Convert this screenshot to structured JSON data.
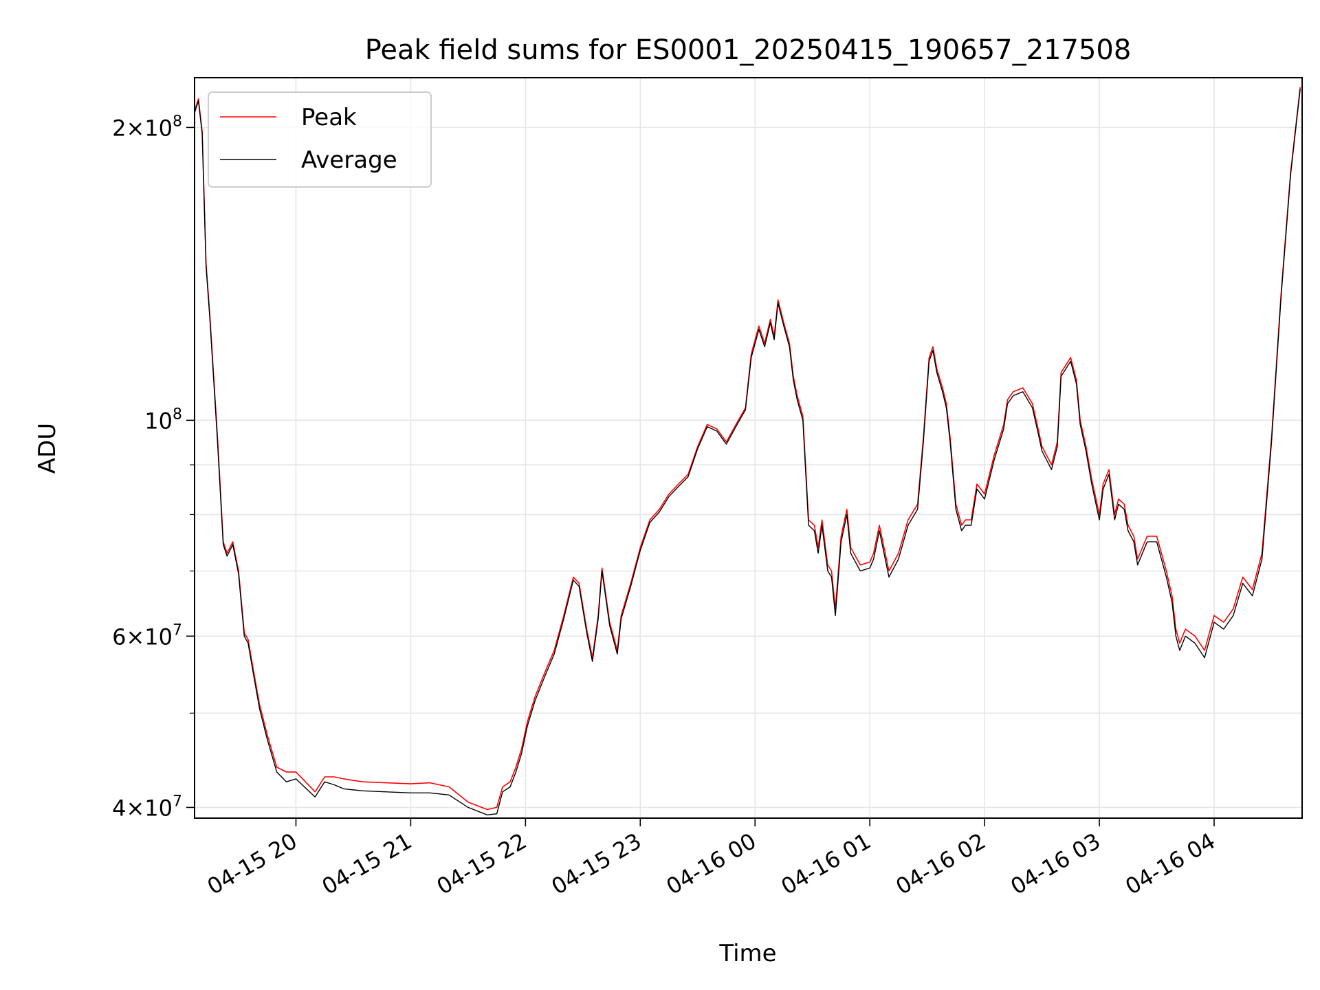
{
  "chart_data": {
    "type": "line",
    "title": "Peak field sums for ES0001_20250415_190657_217508",
    "xlabel": "Time",
    "ylabel": "ADU",
    "yscale": "log",
    "ylim": [
      39000000,
      225000000
    ],
    "xlim": [
      "2025-04-15 19:07",
      "2025-04-16 04:46"
    ],
    "grid": true,
    "legend_position": "top-left",
    "x_ticks": [
      {
        "value": "2025-04-15 20:00",
        "label": "04-15 20"
      },
      {
        "value": "2025-04-15 21:00",
        "label": "04-15 21"
      },
      {
        "value": "2025-04-15 22:00",
        "label": "04-15 22"
      },
      {
        "value": "2025-04-15 23:00",
        "label": "04-15 23"
      },
      {
        "value": "2025-04-16 00:00",
        "label": "04-16 00"
      },
      {
        "value": "2025-04-16 01:00",
        "label": "04-16 01"
      },
      {
        "value": "2025-04-16 02:00",
        "label": "04-16 02"
      },
      {
        "value": "2025-04-16 03:00",
        "label": "04-16 03"
      },
      {
        "value": "2025-04-16 04:00",
        "label": "04-16 04"
      }
    ],
    "y_ticks": [
      {
        "value": 40000000,
        "base": "4×10",
        "exp": "7"
      },
      {
        "value": 60000000,
        "base": "6×10",
        "exp": "7"
      },
      {
        "value": 100000000,
        "base": "10",
        "exp": "8"
      },
      {
        "value": 200000000,
        "base": "2×10",
        "exp": "8"
      }
    ],
    "y_minor_ticks": [
      50000000,
      70000000,
      80000000,
      90000000
    ],
    "series": [
      {
        "name": "Peak",
        "color": "#ff0000",
        "x": [
          "2025-04-15 19:07",
          "2025-04-15 19:09",
          "2025-04-15 19:11",
          "2025-04-15 19:13",
          "2025-04-15 19:15",
          "2025-04-15 19:19",
          "2025-04-15 19:22",
          "2025-04-15 19:24",
          "2025-04-15 19:27",
          "2025-04-15 19:30",
          "2025-04-15 19:33",
          "2025-04-15 19:35",
          "2025-04-15 19:38",
          "2025-04-15 19:41",
          "2025-04-15 19:45",
          "2025-04-15 19:50",
          "2025-04-15 19:55",
          "2025-04-15 20:00",
          "2025-04-15 20:10",
          "2025-04-15 20:15",
          "2025-04-15 20:20",
          "2025-04-15 20:25",
          "2025-04-15 20:35",
          "2025-04-15 21:00",
          "2025-04-15 21:10",
          "2025-04-15 21:20",
          "2025-04-15 21:30",
          "2025-04-15 21:40",
          "2025-04-15 21:45",
          "2025-04-15 21:48",
          "2025-04-15 21:52",
          "2025-04-15 21:55",
          "2025-04-15 21:58",
          "2025-04-15 22:01",
          "2025-04-15 22:05",
          "2025-04-15 22:10",
          "2025-04-15 22:15",
          "2025-04-15 22:20",
          "2025-04-15 22:25",
          "2025-04-15 22:28",
          "2025-04-15 22:32",
          "2025-04-15 22:35",
          "2025-04-15 22:38",
          "2025-04-15 22:40",
          "2025-04-15 22:44",
          "2025-04-15 22:48",
          "2025-04-15 22:50",
          "2025-04-15 22:55",
          "2025-04-15 23:00",
          "2025-04-15 23:05",
          "2025-04-15 23:10",
          "2025-04-15 23:15",
          "2025-04-15 23:20",
          "2025-04-15 23:25",
          "2025-04-15 23:30",
          "2025-04-15 23:35",
          "2025-04-15 23:40",
          "2025-04-15 23:45",
          "2025-04-15 23:50",
          "2025-04-15 23:55",
          "2025-04-15 23:58",
          "2025-04-16 00:02",
          "2025-04-16 00:05",
          "2025-04-16 00:08",
          "2025-04-16 00:10",
          "2025-04-16 00:12",
          "2025-04-16 00:15",
          "2025-04-16 00:18",
          "2025-04-16 00:20",
          "2025-04-16 00:22",
          "2025-04-16 00:25",
          "2025-04-16 00:28",
          "2025-04-16 00:31",
          "2025-04-16 00:33",
          "2025-04-16 00:35",
          "2025-04-16 00:38",
          "2025-04-16 00:40",
          "2025-04-16 00:42",
          "2025-04-16 00:45",
          "2025-04-16 00:48",
          "2025-04-16 00:50",
          "2025-04-16 00:55",
          "2025-04-16 01:00",
          "2025-04-16 01:02",
          "2025-04-16 01:05",
          "2025-04-16 01:10",
          "2025-04-16 01:15",
          "2025-04-16 01:20",
          "2025-04-16 01:25",
          "2025-04-16 01:28",
          "2025-04-16 01:31",
          "2025-04-16 01:33",
          "2025-04-16 01:35",
          "2025-04-16 01:38",
          "2025-04-16 01:40",
          "2025-04-16 01:42",
          "2025-04-16 01:45",
          "2025-04-16 01:48",
          "2025-04-16 01:50",
          "2025-04-16 01:53",
          "2025-04-16 01:56",
          "2025-04-16 02:00",
          "2025-04-16 02:05",
          "2025-04-16 02:10",
          "2025-04-16 02:12",
          "2025-04-16 02:15",
          "2025-04-16 02:20",
          "2025-04-16 02:25",
          "2025-04-16 02:28",
          "2025-04-16 02:30",
          "2025-04-16 02:35",
          "2025-04-16 02:38",
          "2025-04-16 02:40",
          "2025-04-16 02:45",
          "2025-04-16 02:48",
          "2025-04-16 02:50",
          "2025-04-16 02:53",
          "2025-04-16 02:56",
          "2025-04-16 03:00",
          "2025-04-16 03:02",
          "2025-04-16 03:05",
          "2025-04-16 03:08",
          "2025-04-16 03:10",
          "2025-04-16 03:13",
          "2025-04-16 03:15",
          "2025-04-16 03:18",
          "2025-04-16 03:20",
          "2025-04-16 03:25",
          "2025-04-16 03:30",
          "2025-04-16 03:35",
          "2025-04-16 03:38",
          "2025-04-16 03:40",
          "2025-04-16 03:42",
          "2025-04-16 03:45",
          "2025-04-16 03:50",
          "2025-04-16 03:55",
          "2025-04-16 04:00",
          "2025-04-16 04:05",
          "2025-04-16 04:10",
          "2025-04-16 04:15",
          "2025-04-16 04:20",
          "2025-04-16 04:25",
          "2025-04-16 04:30",
          "2025-04-16 04:35",
          "2025-04-16 04:40",
          "2025-04-16 04:45"
        ],
        "y": [
          208000000,
          214000000,
          198000000,
          145000000,
          128000000,
          96000000,
          75000000,
          73000000,
          75000000,
          70000000,
          60500000,
          59500000,
          55000000,
          51000000,
          47500000,
          44000000,
          43500000,
          43500000,
          41500000,
          43000000,
          43000000,
          42800000,
          42500000,
          42300000,
          42400000,
          42000000,
          40500000,
          39800000,
          40000000,
          42000000,
          42500000,
          44000000,
          46000000,
          49000000,
          52000000,
          55000000,
          58000000,
          63000000,
          69000000,
          68000000,
          61000000,
          57000000,
          63000000,
          70500000,
          62000000,
          58000000,
          63000000,
          68000000,
          74000000,
          79000000,
          81000000,
          84000000,
          86000000,
          88000000,
          94000000,
          99000000,
          98000000,
          95000000,
          99000000,
          103000000,
          117000000,
          125000000,
          120000000,
          127000000,
          122000000,
          133000000,
          126000000,
          120000000,
          111000000,
          106000000,
          101000000,
          79000000,
          78000000,
          74000000,
          79000000,
          71000000,
          70000000,
          64000000,
          76000000,
          81000000,
          74000000,
          71000000,
          71500000,
          73000000,
          78000000,
          70000000,
          73000000,
          79000000,
          82000000,
          96000000,
          116000000,
          119000000,
          113000000,
          108000000,
          104000000,
          96000000,
          82000000,
          78000000,
          79000000,
          79000000,
          86000000,
          84000000,
          92000000,
          99000000,
          105000000,
          107000000,
          108000000,
          104000000,
          98000000,
          94000000,
          90000000,
          95000000,
          112000000,
          116000000,
          110000000,
          100000000,
          94000000,
          87000000,
          80000000,
          86000000,
          89000000,
          80000000,
          83000000,
          82000000,
          78000000,
          76000000,
          72000000,
          76000000,
          76000000,
          70000000,
          66000000,
          61000000,
          59000000,
          61000000,
          60000000,
          58000000,
          63000000,
          62000000,
          64000000,
          69000000,
          67000000,
          73000000,
          96000000,
          135000000,
          180000000,
          220000000
        ]
      },
      {
        "name": "Average",
        "color": "#000000",
        "x": [
          "2025-04-15 19:07",
          "2025-04-15 19:09",
          "2025-04-15 19:11",
          "2025-04-15 19:13",
          "2025-04-15 19:15",
          "2025-04-15 19:19",
          "2025-04-15 19:22",
          "2025-04-15 19:24",
          "2025-04-15 19:27",
          "2025-04-15 19:30",
          "2025-04-15 19:33",
          "2025-04-15 19:35",
          "2025-04-15 19:38",
          "2025-04-15 19:41",
          "2025-04-15 19:45",
          "2025-04-15 19:50",
          "2025-04-15 19:55",
          "2025-04-15 20:00",
          "2025-04-15 20:10",
          "2025-04-15 20:15",
          "2025-04-15 20:20",
          "2025-04-15 20:25",
          "2025-04-15 20:35",
          "2025-04-15 21:00",
          "2025-04-15 21:10",
          "2025-04-15 21:20",
          "2025-04-15 21:30",
          "2025-04-15 21:40",
          "2025-04-15 21:45",
          "2025-04-15 21:48",
          "2025-04-15 21:52",
          "2025-04-15 21:55",
          "2025-04-15 21:58",
          "2025-04-15 22:01",
          "2025-04-15 22:05",
          "2025-04-15 22:10",
          "2025-04-15 22:15",
          "2025-04-15 22:20",
          "2025-04-15 22:25",
          "2025-04-15 22:28",
          "2025-04-15 22:32",
          "2025-04-15 22:35",
          "2025-04-15 22:38",
          "2025-04-15 22:40",
          "2025-04-15 22:44",
          "2025-04-15 22:48",
          "2025-04-15 22:50",
          "2025-04-15 22:55",
          "2025-04-15 23:00",
          "2025-04-15 23:05",
          "2025-04-15 23:10",
          "2025-04-15 23:15",
          "2025-04-15 23:20",
          "2025-04-15 23:25",
          "2025-04-15 23:30",
          "2025-04-15 23:35",
          "2025-04-15 23:40",
          "2025-04-15 23:45",
          "2025-04-15 23:50",
          "2025-04-15 23:55",
          "2025-04-15 23:58",
          "2025-04-16 00:02",
          "2025-04-16 00:05",
          "2025-04-16 00:08",
          "2025-04-16 00:10",
          "2025-04-16 00:12",
          "2025-04-16 00:15",
          "2025-04-16 00:18",
          "2025-04-16 00:20",
          "2025-04-16 00:22",
          "2025-04-16 00:25",
          "2025-04-16 00:28",
          "2025-04-16 00:31",
          "2025-04-16 00:33",
          "2025-04-16 00:35",
          "2025-04-16 00:38",
          "2025-04-16 00:40",
          "2025-04-16 00:42",
          "2025-04-16 00:45",
          "2025-04-16 00:48",
          "2025-04-16 00:50",
          "2025-04-16 00:55",
          "2025-04-16 01:00",
          "2025-04-16 01:02",
          "2025-04-16 01:05",
          "2025-04-16 01:10",
          "2025-04-16 01:15",
          "2025-04-16 01:20",
          "2025-04-16 01:25",
          "2025-04-16 01:28",
          "2025-04-16 01:31",
          "2025-04-16 01:33",
          "2025-04-16 01:35",
          "2025-04-16 01:38",
          "2025-04-16 01:40",
          "2025-04-16 01:42",
          "2025-04-16 01:45",
          "2025-04-16 01:48",
          "2025-04-16 01:50",
          "2025-04-16 01:53",
          "2025-04-16 01:56",
          "2025-04-16 02:00",
          "2025-04-16 02:05",
          "2025-04-16 02:10",
          "2025-04-16 02:12",
          "2025-04-16 02:15",
          "2025-04-16 02:20",
          "2025-04-16 02:25",
          "2025-04-16 02:28",
          "2025-04-16 02:30",
          "2025-04-16 02:35",
          "2025-04-16 02:38",
          "2025-04-16 02:40",
          "2025-04-16 02:45",
          "2025-04-16 02:48",
          "2025-04-16 02:50",
          "2025-04-16 02:53",
          "2025-04-16 02:56",
          "2025-04-16 03:00",
          "2025-04-16 03:02",
          "2025-04-16 03:05",
          "2025-04-16 03:08",
          "2025-04-16 03:10",
          "2025-04-16 03:13",
          "2025-04-16 03:15",
          "2025-04-16 03:18",
          "2025-04-16 03:20",
          "2025-04-16 03:25",
          "2025-04-16 03:30",
          "2025-04-16 03:35",
          "2025-04-16 03:38",
          "2025-04-16 03:40",
          "2025-04-16 03:42",
          "2025-04-16 03:45",
          "2025-04-16 03:50",
          "2025-04-16 03:55",
          "2025-04-16 04:00",
          "2025-04-16 04:05",
          "2025-04-16 04:10",
          "2025-04-16 04:15",
          "2025-04-16 04:20",
          "2025-04-16 04:25",
          "2025-04-16 04:30",
          "2025-04-16 04:35",
          "2025-04-16 04:40",
          "2025-04-16 04:45"
        ],
        "y": [
          207000000,
          213000000,
          197000000,
          144000000,
          127000000,
          95000000,
          74500000,
          72500000,
          74500000,
          69500000,
          60000000,
          59000000,
          54500000,
          50500000,
          47000000,
          43500000,
          42500000,
          42800000,
          41000000,
          42500000,
          42200000,
          41800000,
          41600000,
          41400000,
          41400000,
          41200000,
          40000000,
          39300000,
          39400000,
          41500000,
          42000000,
          43500000,
          45500000,
          48500000,
          51500000,
          54500000,
          57500000,
          62500000,
          68500000,
          67500000,
          60500000,
          56500000,
          62500000,
          70000000,
          61500000,
          57500000,
          62500000,
          67500000,
          73500000,
          78500000,
          80500000,
          83500000,
          85500000,
          87500000,
          93500000,
          98500000,
          97500000,
          94500000,
          98500000,
          102500000,
          116000000,
          124000000,
          119000000,
          126000000,
          121000000,
          132000000,
          125000000,
          119000000,
          110000000,
          105000000,
          100000000,
          78000000,
          77000000,
          73000000,
          78000000,
          70000000,
          69000000,
          63000000,
          75000000,
          80000000,
          73000000,
          70000000,
          70500000,
          72000000,
          77000000,
          69000000,
          72000000,
          78000000,
          81000000,
          95000000,
          115000000,
          118000000,
          112000000,
          107000000,
          103000000,
          95000000,
          81000000,
          77000000,
          78000000,
          78000000,
          85000000,
          83000000,
          91000000,
          98000000,
          104000000,
          106000000,
          107000000,
          103000000,
          97000000,
          93000000,
          89000000,
          94000000,
          111000000,
          115000000,
          109000000,
          99000000,
          93000000,
          86000000,
          79000000,
          85000000,
          88000000,
          79000000,
          82000000,
          81000000,
          77000000,
          75000000,
          71000000,
          75000000,
          75000000,
          69000000,
          65000000,
          60000000,
          58000000,
          60000000,
          59000000,
          57000000,
          62000000,
          61000000,
          63000000,
          68000000,
          66000000,
          72000000,
          95000000,
          134000000,
          179000000,
          219000000
        ]
      }
    ]
  }
}
